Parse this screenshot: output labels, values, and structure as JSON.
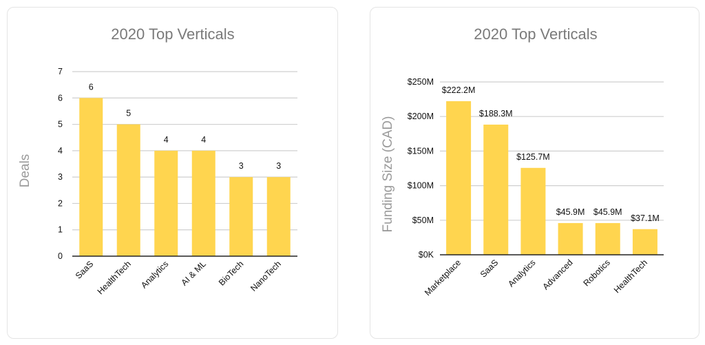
{
  "chart_data": [
    {
      "type": "bar",
      "title": "2020 Top Verticals",
      "xlabel": "",
      "ylabel": "Deals",
      "categories": [
        "SaaS",
        "HealthTech",
        "Analytics",
        "AI & ML",
        "BioTech",
        "NanoTech"
      ],
      "values": [
        6,
        5,
        4,
        4,
        3,
        3
      ],
      "data_labels": [
        "6",
        "5",
        "4",
        "4",
        "3",
        "3"
      ],
      "ylim": [
        0,
        7
      ],
      "yticks": [
        0,
        1,
        2,
        3,
        4,
        5,
        6,
        7
      ],
      "ytick_labels": [
        "0",
        "1",
        "2",
        "3",
        "4",
        "5",
        "6",
        "7"
      ],
      "bar_color": "#FFD54F",
      "grid": true
    },
    {
      "type": "bar",
      "title": "2020 Top Verticals",
      "xlabel": "",
      "ylabel": "Funding Size (CAD)",
      "categories": [
        "Marketplace",
        "SaaS",
        "Analytics",
        "Advanced",
        "Robotics",
        "HealthTech"
      ],
      "values": [
        222.2,
        188.3,
        125.7,
        45.9,
        45.9,
        37.1
      ],
      "data_labels": [
        "$222.2M",
        "$188.3M",
        "$125.7M",
        "$45.9M",
        "$45.9M",
        "$37.1M"
      ],
      "ylim": [
        0,
        250
      ],
      "yticks": [
        0,
        50,
        100,
        150,
        200,
        250
      ],
      "ytick_labels": [
        "$0K",
        "$50M",
        "$100M",
        "$150M",
        "$200M",
        "$250M"
      ],
      "bar_color": "#FFD54F",
      "grid": true
    }
  ]
}
